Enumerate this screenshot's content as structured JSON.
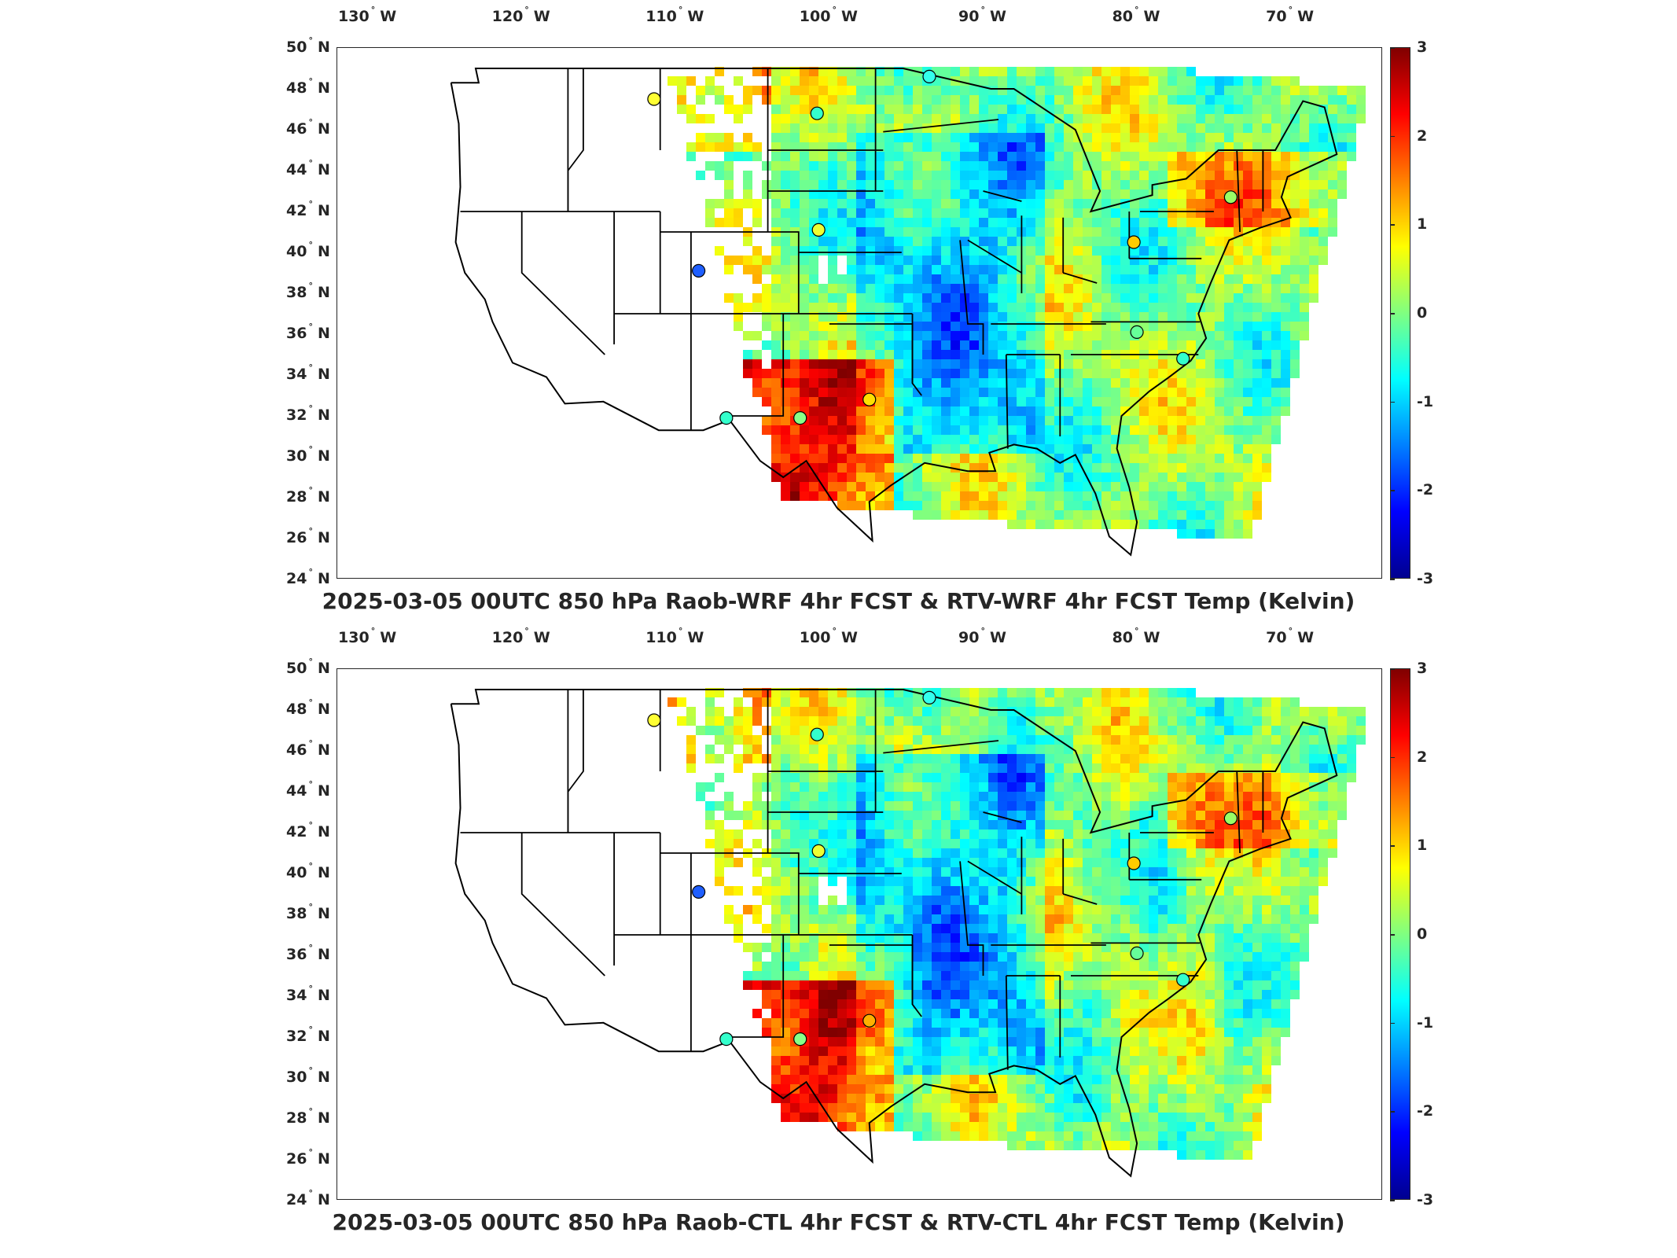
{
  "panels": [
    {
      "id": "top",
      "title": "2025-03-05 00UTC 850 hPa Raob-WRF 4hr FCST & RTV-WRF 4hr FCST Temp (Kelvin)",
      "stations": [
        {
          "lon": -111.4,
          "lat": 47.5,
          "color": "#ffff33"
        },
        {
          "lon": -100.8,
          "lat": 46.8,
          "color": "#33ffcc"
        },
        {
          "lon": -93.5,
          "lat": 48.6,
          "color": "#33ffee"
        },
        {
          "lon": -100.7,
          "lat": 41.1,
          "color": "#eeff33"
        },
        {
          "lon": -108.5,
          "lat": 39.1,
          "color": "#1f5fff"
        },
        {
          "lon": -97.4,
          "lat": 32.8,
          "color": "#ffe000"
        },
        {
          "lon": -101.9,
          "lat": 31.9,
          "color": "#88ff88"
        },
        {
          "lon": -106.7,
          "lat": 31.9,
          "color": "#33ffcc"
        },
        {
          "lon": -80.2,
          "lat": 40.5,
          "color": "#ffcc00"
        },
        {
          "lon": -73.9,
          "lat": 42.7,
          "color": "#99ff66"
        },
        {
          "lon": -80.0,
          "lat": 36.1,
          "color": "#66ff99"
        },
        {
          "lon": -77.0,
          "lat": 34.8,
          "color": "#33ffcc"
        }
      ]
    },
    {
      "id": "bottom",
      "title": "2025-03-05 00UTC 850 hPa Raob-CTL 4hr FCST & RTV-CTL 4hr FCST Temp (Kelvin)",
      "stations": [
        {
          "lon": -111.4,
          "lat": 47.5,
          "color": "#ffff33"
        },
        {
          "lon": -100.8,
          "lat": 46.8,
          "color": "#33ffcc"
        },
        {
          "lon": -93.5,
          "lat": 48.6,
          "color": "#33ffee"
        },
        {
          "lon": -100.7,
          "lat": 41.1,
          "color": "#eeff33"
        },
        {
          "lon": -108.5,
          "lat": 39.1,
          "color": "#1f5fff"
        },
        {
          "lon": -97.4,
          "lat": 32.8,
          "color": "#ffb000"
        },
        {
          "lon": -101.9,
          "lat": 31.9,
          "color": "#88ff88"
        },
        {
          "lon": -106.7,
          "lat": 31.9,
          "color": "#33ffcc"
        },
        {
          "lon": -80.2,
          "lat": 40.5,
          "color": "#ffcc00"
        },
        {
          "lon": -73.9,
          "lat": 42.7,
          "color": "#99ff66"
        },
        {
          "lon": -80.0,
          "lat": 36.1,
          "color": "#66ff99"
        },
        {
          "lon": -77.0,
          "lat": 34.8,
          "color": "#33ffcc"
        }
      ]
    }
  ],
  "lon_ticks": [
    {
      "label": "130",
      "hemi": "W",
      "value": -130
    },
    {
      "label": "120",
      "hemi": "W",
      "value": -120
    },
    {
      "label": "110",
      "hemi": "W",
      "value": -110
    },
    {
      "label": "100",
      "hemi": "W",
      "value": -100
    },
    {
      "label": "90",
      "hemi": "W",
      "value": -90
    },
    {
      "label": "80",
      "hemi": "W",
      "value": -80
    },
    {
      "label": "70",
      "hemi": "W",
      "value": -70
    }
  ],
  "lat_ticks": [
    {
      "label": "50",
      "hemi": "N",
      "value": 50
    },
    {
      "label": "48",
      "hemi": "N",
      "value": 48
    },
    {
      "label": "46",
      "hemi": "N",
      "value": 46
    },
    {
      "label": "44",
      "hemi": "N",
      "value": 44
    },
    {
      "label": "42",
      "hemi": "N",
      "value": 42
    },
    {
      "label": "40",
      "hemi": "N",
      "value": 40
    },
    {
      "label": "38",
      "hemi": "N",
      "value": 38
    },
    {
      "label": "36",
      "hemi": "N",
      "value": 36
    },
    {
      "label": "34",
      "hemi": "N",
      "value": 34
    },
    {
      "label": "32",
      "hemi": "N",
      "value": 32
    },
    {
      "label": "30",
      "hemi": "N",
      "value": 30
    },
    {
      "label": "28",
      "hemi": "N",
      "value": 28
    },
    {
      "label": "26",
      "hemi": "N",
      "value": 26
    },
    {
      "label": "24",
      "hemi": "N",
      "value": 24
    }
  ],
  "colorbar": {
    "ticks": [
      "3",
      "2",
      "1",
      "0",
      "-1",
      "-2",
      "-3"
    ],
    "min": -3,
    "max": 3,
    "colormap": "jet"
  },
  "map": {
    "lon_range": [
      -132,
      -64
    ],
    "lat_range": [
      24,
      50
    ]
  }
}
